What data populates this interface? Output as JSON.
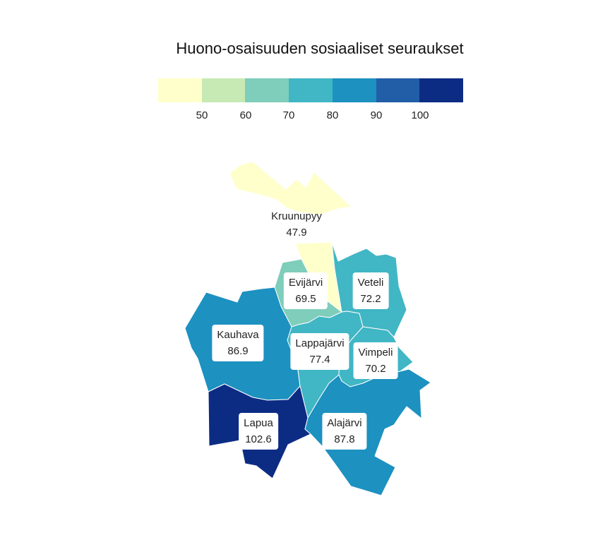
{
  "title": "Huono-osaisuuden sosiaaliset seuraukset",
  "legend": {
    "colors": [
      "#ffffcc",
      "#c7e9b4",
      "#7fcdbb",
      "#41b6c4",
      "#1d91c0",
      "#225ea8",
      "#0c2c84"
    ],
    "ticks": [
      "50",
      "60",
      "70",
      "80",
      "90",
      "100"
    ]
  },
  "regions": [
    {
      "name": "Kruunupyy",
      "value": "47.9",
      "color": "#ffffcc"
    },
    {
      "name": "Evijärvi",
      "value": "69.5",
      "color": "#7fcdbb"
    },
    {
      "name": "Veteli",
      "value": "72.2",
      "color": "#41b6c4"
    },
    {
      "name": "Kauhava",
      "value": "86.9",
      "color": "#1d91c0"
    },
    {
      "name": "Lappajärvi",
      "value": "77.4",
      "color": "#41b6c4"
    },
    {
      "name": "Vimpeli",
      "value": "70.2",
      "color": "#41b6c4"
    },
    {
      "name": "Lapua",
      "value": "102.6",
      "color": "#0c2c84"
    },
    {
      "name": "Alajärvi",
      "value": "87.8",
      "color": "#1d91c0"
    }
  ]
}
